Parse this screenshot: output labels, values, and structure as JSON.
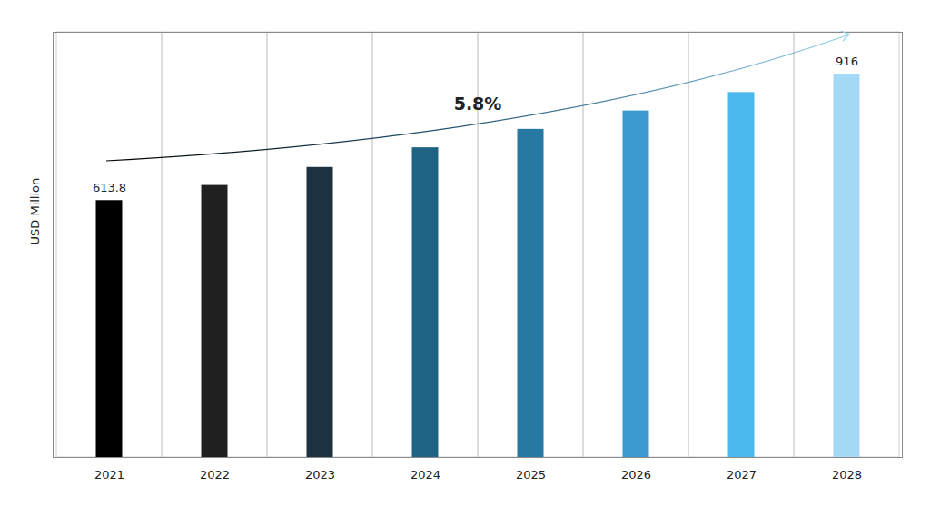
{
  "chart_data": {
    "type": "bar",
    "y_label": "USD Million",
    "annotation": "5.8%",
    "categories": [
      "2021",
      "2022",
      "2023",
      "2024",
      "2025",
      "2026",
      "2027",
      "2028"
    ],
    "values": [
      613.8,
      650,
      693,
      740,
      784,
      828,
      872,
      916
    ],
    "value_labels": [
      "613.8",
      null,
      null,
      null,
      null,
      null,
      null,
      "916"
    ],
    "colors": [
      "#000000",
      "#202020",
      "#1c3240",
      "#1e6482",
      "#2779a3",
      "#3d9ad0",
      "#4bb8ee",
      "#a3d9f7"
    ],
    "ylim": [
      0,
      1016
    ],
    "yticks": [],
    "tick_labels": "x",
    "data_labels": true,
    "grid": true
  }
}
